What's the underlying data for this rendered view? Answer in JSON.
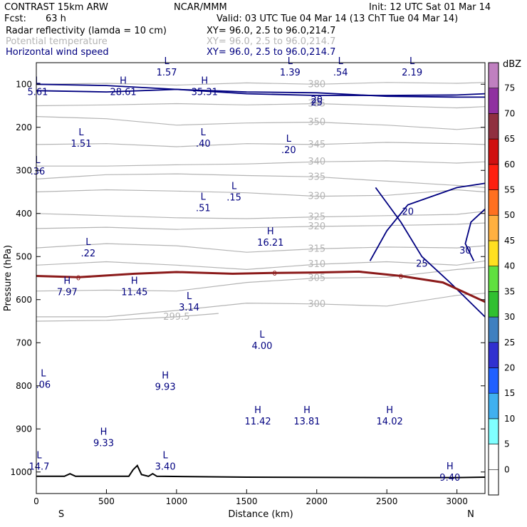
{
  "header": {
    "model": "CONTRAST 15km ARW",
    "org": "NCAR/MMM",
    "init": "Init: 12 UTC Sat 01 Mar 14",
    "fcst_label": "Fcst:",
    "fcst_value": "63 h",
    "valid": "Valid: 03 UTC Tue 04 Mar 14 (13 ChT Tue 04 Mar 14)"
  },
  "fields": [
    {
      "name": "Radar reflectivity (lamda = 10 cm)",
      "xy": "XY=  96.0,  2.5 to  96.0,214.7",
      "color": "#000000"
    },
    {
      "name": "Potential temperature",
      "xy": "XY=  96.0,  2.5 to  96.0,214.7",
      "color": "#b4b4b4"
    },
    {
      "name": "Horizontal wind speed",
      "xy": "XY=  96.0,  2.5 to  96.0,214.7",
      "color": "#000080"
    }
  ],
  "chart_data": {
    "type": "cross-section contour",
    "xlabel": "Distance (km)",
    "ylabel": "Pressure (hPa)",
    "xlim": [
      0,
      3200
    ],
    "ylim": [
      1050,
      50
    ],
    "xticks": [
      0,
      500,
      1000,
      1500,
      2000,
      2500,
      3000
    ],
    "yticks": [
      100,
      200,
      300,
      400,
      500,
      600,
      700,
      800,
      900,
      1000
    ],
    "x_end_labels": {
      "left": "S",
      "right": "N"
    },
    "colorbar": {
      "unit": "dBZ",
      "levels": [
        0,
        5,
        10,
        15,
        20,
        25,
        30,
        35,
        40,
        45,
        50,
        55,
        60,
        65,
        70,
        75
      ],
      "colors": [
        "#ffffff",
        "#80ffff",
        "#40b0f0",
        "#2060ff",
        "#3030d0",
        "#4080c0",
        "#30c030",
        "#60e040",
        "#ffe020",
        "#ffb040",
        "#ff7020",
        "#ff2010",
        "#d01010",
        "#903040",
        "#9030a0",
        "#c080c0"
      ]
    },
    "theta_contours": [
      {
        "label": "380",
        "points": [
          [
            0,
            100
          ],
          [
            500,
            98
          ],
          [
            1000,
            102
          ],
          [
            1500,
            97
          ],
          [
            2000,
            100
          ],
          [
            2500,
            96
          ],
          [
            3000,
            98
          ],
          [
            3200,
            96
          ]
        ]
      },
      {
        "label": "355",
        "points": [
          [
            0,
            150
          ],
          [
            500,
            148
          ],
          [
            1000,
            145
          ],
          [
            1500,
            148
          ],
          [
            2000,
            145
          ],
          [
            2500,
            150
          ],
          [
            3000,
            155
          ],
          [
            3200,
            152
          ]
        ]
      },
      {
        "label": "350",
        "points": [
          [
            0,
            175
          ],
          [
            500,
            180
          ],
          [
            1000,
            195
          ],
          [
            1500,
            190
          ],
          [
            2000,
            188
          ],
          [
            2500,
            195
          ],
          [
            3000,
            205
          ],
          [
            3200,
            200
          ]
        ]
      },
      {
        "label": "345",
        "points": [
          [
            0,
            240
          ],
          [
            500,
            238
          ],
          [
            1000,
            245
          ],
          [
            1500,
            238
          ],
          [
            2000,
            240
          ],
          [
            2500,
            235
          ],
          [
            3000,
            238
          ],
          [
            3200,
            240
          ]
        ]
      },
      {
        "label": "340",
        "points": [
          [
            0,
            290
          ],
          [
            500,
            290
          ],
          [
            1000,
            287
          ],
          [
            1500,
            285
          ],
          [
            2000,
            280
          ],
          [
            2500,
            278
          ],
          [
            3000,
            283
          ],
          [
            3200,
            280
          ]
        ]
      },
      {
        "label": "335",
        "points": [
          [
            0,
            320
          ],
          [
            500,
            310
          ],
          [
            1000,
            308
          ],
          [
            1500,
            312
          ],
          [
            2000,
            315
          ],
          [
            2500,
            325
          ],
          [
            3000,
            335
          ],
          [
            3200,
            340
          ]
        ]
      },
      {
        "label": "330",
        "points": [
          [
            0,
            350
          ],
          [
            500,
            345
          ],
          [
            1000,
            348
          ],
          [
            1500,
            352
          ],
          [
            2000,
            360
          ],
          [
            2500,
            358
          ],
          [
            3000,
            345
          ],
          [
            3200,
            350
          ]
        ]
      },
      {
        "label": "325",
        "points": [
          [
            0,
            400
          ],
          [
            500,
            405
          ],
          [
            1000,
            410
          ],
          [
            1500,
            412
          ],
          [
            2000,
            408
          ],
          [
            2500,
            405
          ],
          [
            3000,
            402
          ],
          [
            3200,
            395
          ]
        ]
      },
      {
        "label": "320",
        "points": [
          [
            0,
            435
          ],
          [
            500,
            432
          ],
          [
            1000,
            437
          ],
          [
            1500,
            433
          ],
          [
            2000,
            430
          ],
          [
            2500,
            428
          ],
          [
            3000,
            425
          ],
          [
            3200,
            422
          ]
        ]
      },
      {
        "label": "315",
        "points": [
          [
            0,
            480
          ],
          [
            500,
            470
          ],
          [
            1000,
            475
          ],
          [
            1500,
            490
          ],
          [
            2000,
            482
          ],
          [
            2500,
            478
          ],
          [
            3000,
            480
          ],
          [
            3200,
            475
          ]
        ]
      },
      {
        "label": "310",
        "points": [
          [
            0,
            520
          ],
          [
            500,
            512
          ],
          [
            1000,
            520
          ],
          [
            1500,
            530
          ],
          [
            2000,
            518
          ],
          [
            2500,
            512
          ],
          [
            3000,
            520
          ],
          [
            3200,
            510
          ]
        ]
      },
      {
        "label": "305",
        "points": [
          [
            0,
            580
          ],
          [
            500,
            578
          ],
          [
            1000,
            580
          ],
          [
            1500,
            560
          ],
          [
            2000,
            550
          ],
          [
            2500,
            548
          ],
          [
            3000,
            530
          ],
          [
            3200,
            525
          ]
        ]
      },
      {
        "label": "300",
        "points": [
          [
            0,
            640
          ],
          [
            500,
            640
          ],
          [
            1000,
            625
          ],
          [
            1500,
            608
          ],
          [
            2000,
            610
          ],
          [
            2500,
            615
          ],
          [
            3000,
            590
          ],
          [
            3200,
            585
          ]
        ]
      },
      {
        "label": "299.5",
        "points": [
          [
            0,
            650
          ],
          [
            500,
            648
          ],
          [
            1000,
            640
          ],
          [
            1300,
            632
          ]
        ]
      }
    ],
    "wind_contours": [
      {
        "label": "20",
        "points": [
          [
            0,
            115
          ],
          [
            500,
            118
          ],
          [
            1000,
            112
          ],
          [
            1500,
            118
          ],
          [
            2000,
            120
          ],
          [
            2500,
            128
          ],
          [
            3000,
            130
          ],
          [
            3200,
            130
          ]
        ]
      },
      {
        "label": "25",
        "points": [
          [
            0,
            100
          ],
          [
            500,
            103
          ],
          [
            1000,
            112
          ],
          [
            1500,
            122
          ],
          [
            2000,
            126
          ],
          [
            2500,
            126
          ],
          [
            3000,
            125
          ],
          [
            3200,
            122
          ]
        ]
      },
      {
        "label": "20",
        "points": [
          [
            2380,
            510
          ],
          [
            2500,
            440
          ],
          [
            2650,
            380
          ],
          [
            3000,
            340
          ],
          [
            3200,
            330
          ]
        ]
      },
      {
        "label": "30",
        "points": [
          [
            3200,
            390
          ],
          [
            3100,
            420
          ],
          [
            3060,
            470
          ],
          [
            3120,
            510
          ]
        ]
      },
      {
        "label": "25",
        "points": [
          [
            2420,
            340
          ],
          [
            2600,
            420
          ],
          [
            2750,
            500
          ],
          [
            2950,
            560
          ],
          [
            3200,
            640
          ]
        ]
      }
    ],
    "freezing_level": {
      "label": "0",
      "points": [
        [
          0,
          545
        ],
        [
          300,
          548
        ],
        [
          700,
          540
        ],
        [
          1000,
          536
        ],
        [
          1400,
          540
        ],
        [
          1700,
          538
        ],
        [
          2000,
          537
        ],
        [
          2300,
          535
        ],
        [
          2600,
          545
        ],
        [
          2900,
          560
        ],
        [
          3100,
          590
        ],
        [
          3200,
          605
        ]
      ]
    },
    "terrain": {
      "points": [
        [
          0,
          1010
        ],
        [
          200,
          1010
        ],
        [
          240,
          1004
        ],
        [
          280,
          1010
        ],
        [
          660,
          1010
        ],
        [
          690,
          995
        ],
        [
          720,
          985
        ],
        [
          750,
          1006
        ],
        [
          800,
          1010
        ],
        [
          830,
          1004
        ],
        [
          860,
          1010
        ],
        [
          1500,
          1012
        ],
        [
          2500,
          1013
        ],
        [
          3000,
          1013
        ],
        [
          3200,
          1012
        ]
      ]
    },
    "extrema": [
      {
        "type": "L",
        "value": "1.57",
        "x": 930,
        "p": 60
      },
      {
        "type": "L",
        "value": "1.39",
        "x": 1810,
        "p": 60
      },
      {
        "type": "L",
        "value": ".54",
        "x": 2170,
        "p": 60
      },
      {
        "type": "L",
        "value": "2.19",
        "x": 2680,
        "p": 60
      },
      {
        "type": "L",
        "value": "5.61",
        "x": 10,
        "p": 105
      },
      {
        "type": "H",
        "value": "28.61",
        "x": 620,
        "p": 105
      },
      {
        "type": "H",
        "value": "35.31",
        "x": 1200,
        "p": 105
      },
      {
        "type": "L",
        "value": "1.51",
        "x": 320,
        "p": 225
      },
      {
        "type": "L",
        "value": ".40",
        "x": 1190,
        "p": 225
      },
      {
        "type": "L",
        "value": ".20",
        "x": 1800,
        "p": 240
      },
      {
        "type": "L",
        "value": ".36",
        "x": 10,
        "p": 290
      },
      {
        "type": "L",
        "value": ".15",
        "x": 1410,
        "p": 350
      },
      {
        "type": "L",
        "value": ".51",
        "x": 1190,
        "p": 375
      },
      {
        "type": "H",
        "value": "16.21",
        "x": 1670,
        "p": 455
      },
      {
        "type": "L",
        "value": ".22",
        "x": 370,
        "p": 480
      },
      {
        "type": "H",
        "value": "7.97",
        "x": 220,
        "p": 570
      },
      {
        "type": "H",
        "value": "11.45",
        "x": 700,
        "p": 570
      },
      {
        "type": "L",
        "value": "3.14",
        "x": 1090,
        "p": 605
      },
      {
        "type": "L",
        "value": "4.00",
        "x": 1610,
        "p": 695
      },
      {
        "type": "L",
        "value": ".06",
        "x": 50,
        "p": 785
      },
      {
        "type": "H",
        "value": "9.93",
        "x": 920,
        "p": 790
      },
      {
        "type": "H",
        "value": "11.42",
        "x": 1580,
        "p": 870
      },
      {
        "type": "H",
        "value": "13.81",
        "x": 1930,
        "p": 870
      },
      {
        "type": "H",
        "value": "14.02",
        "x": 2520,
        "p": 870
      },
      {
        "type": "H",
        "value": "9.33",
        "x": 480,
        "p": 920
      },
      {
        "type": "L",
        "value": "14.7",
        "x": 20,
        "p": 975
      },
      {
        "type": "L",
        "value": "3.40",
        "x": 920,
        "p": 975
      },
      {
        "type": "H",
        "value": "9.40",
        "x": 2950,
        "p": 1000
      }
    ]
  }
}
